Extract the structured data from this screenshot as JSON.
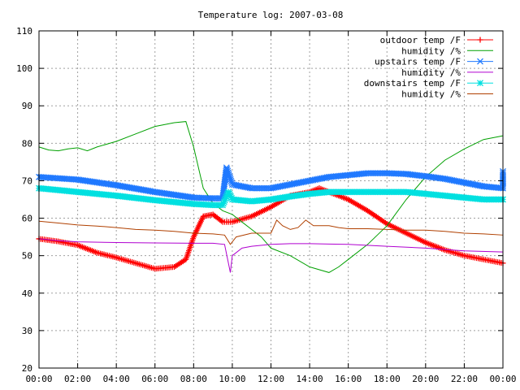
{
  "chart_data": {
    "type": "line",
    "title": "Temperature log: 2007-03-08",
    "xlabel": "",
    "ylabel": "",
    "xlim": [
      0,
      24
    ],
    "ylim": [
      20,
      110
    ],
    "grid": true,
    "legend_position": "top-right",
    "x_tick_labels": [
      "00:00",
      "02:00",
      "04:00",
      "06:00",
      "08:00",
      "10:00",
      "12:00",
      "14:00",
      "16:00",
      "18:00",
      "20:00",
      "22:00",
      "00:00"
    ],
    "y_tick_labels": [
      "20",
      "30",
      "40",
      "50",
      "60",
      "70",
      "80",
      "90",
      "100",
      "110"
    ],
    "series": [
      {
        "name": "outdoor temp /F",
        "color": "#ff0000",
        "marker": "plus",
        "points": [
          [
            0,
            54.5
          ],
          [
            1,
            53.8
          ],
          [
            2,
            52.8
          ],
          [
            3,
            50.8
          ],
          [
            4,
            49.5
          ],
          [
            5,
            48
          ],
          [
            6,
            46.5
          ],
          [
            7,
            47
          ],
          [
            7.6,
            49
          ],
          [
            8,
            55
          ],
          [
            8.5,
            60.5
          ],
          [
            9,
            61
          ],
          [
            9.5,
            59
          ],
          [
            10,
            59
          ],
          [
            11,
            60.5
          ],
          [
            12,
            63
          ],
          [
            13,
            66
          ],
          [
            14,
            67
          ],
          [
            14.5,
            68
          ],
          [
            15,
            67
          ],
          [
            16,
            65
          ],
          [
            17,
            62
          ],
          [
            18,
            58.5
          ],
          [
            19,
            56
          ],
          [
            20,
            53.5
          ],
          [
            21,
            51.5
          ],
          [
            22,
            50
          ],
          [
            23,
            49
          ],
          [
            24,
            48
          ]
        ]
      },
      {
        "name": "humidity /%",
        "color": "#00a000",
        "marker": "line",
        "points": [
          [
            0,
            79
          ],
          [
            0.5,
            78.2
          ],
          [
            1,
            78
          ],
          [
            1.5,
            78.5
          ],
          [
            2,
            78.8
          ],
          [
            2.5,
            78
          ],
          [
            3,
            79
          ],
          [
            4,
            80.5
          ],
          [
            5,
            82.5
          ],
          [
            6,
            84.5
          ],
          [
            7,
            85.5
          ],
          [
            7.6,
            85.8
          ],
          [
            8,
            79
          ],
          [
            8.5,
            68
          ],
          [
            9,
            64
          ],
          [
            9.5,
            62
          ],
          [
            10,
            61
          ],
          [
            10.5,
            59
          ],
          [
            11,
            57
          ],
          [
            11.5,
            55
          ],
          [
            12,
            52
          ],
          [
            13,
            50
          ],
          [
            14,
            47
          ],
          [
            15,
            45.5
          ],
          [
            15.5,
            47
          ],
          [
            16,
            49
          ],
          [
            17,
            53
          ],
          [
            18,
            58
          ],
          [
            19,
            65
          ],
          [
            20,
            71
          ],
          [
            21,
            75.5
          ],
          [
            22,
            78.5
          ],
          [
            23,
            81
          ],
          [
            24,
            82
          ]
        ]
      },
      {
        "name": "upstairs temp /F",
        "color": "#1e78ff",
        "marker": "cross",
        "points": [
          [
            0,
            71
          ],
          [
            2,
            70.3
          ],
          [
            4,
            68.8
          ],
          [
            6,
            67
          ],
          [
            8,
            65.5
          ],
          [
            9,
            65.3
          ],
          [
            9.5,
            65.3
          ],
          [
            9.7,
            73.5
          ],
          [
            10,
            69
          ],
          [
            11,
            68
          ],
          [
            12,
            68
          ],
          [
            13,
            69
          ],
          [
            14,
            70
          ],
          [
            15,
            71
          ],
          [
            16,
            71.5
          ],
          [
            17,
            72
          ],
          [
            18,
            72
          ],
          [
            19,
            71.8
          ],
          [
            20,
            71.2
          ],
          [
            21,
            70.5
          ],
          [
            22,
            69.5
          ],
          [
            23,
            68.5
          ],
          [
            24,
            68
          ],
          [
            24,
            72.5
          ]
        ]
      },
      {
        "name": "humidity /%",
        "color": "#b000d0",
        "marker": "line",
        "points": [
          [
            0,
            54.5
          ],
          [
            1,
            54
          ],
          [
            2,
            53.7
          ],
          [
            4,
            53.5
          ],
          [
            6,
            53.4
          ],
          [
            8,
            53.3
          ],
          [
            9,
            53.3
          ],
          [
            9.6,
            53
          ],
          [
            9.9,
            45.5
          ],
          [
            10,
            50
          ],
          [
            10.5,
            52
          ],
          [
            11,
            52.5
          ],
          [
            12,
            53
          ],
          [
            13,
            53.2
          ],
          [
            14,
            53.2
          ],
          [
            15,
            53.1
          ],
          [
            16,
            53
          ],
          [
            18,
            52.5
          ],
          [
            20,
            52
          ],
          [
            22,
            51.3
          ],
          [
            24,
            51
          ],
          [
            24,
            47.5
          ]
        ]
      },
      {
        "name": "downstairs temp /F",
        "color": "#00e0e0",
        "marker": "star",
        "points": [
          [
            0,
            68
          ],
          [
            2,
            67
          ],
          [
            4,
            66
          ],
          [
            6,
            64.8
          ],
          [
            8,
            63.8
          ],
          [
            9,
            63.5
          ],
          [
            9.5,
            63.5
          ],
          [
            9.8,
            67
          ],
          [
            10,
            65
          ],
          [
            11,
            64.5
          ],
          [
            12,
            65
          ],
          [
            13,
            65.8
          ],
          [
            14,
            66.5
          ],
          [
            15,
            67
          ],
          [
            16,
            67
          ],
          [
            17,
            67
          ],
          [
            18,
            67
          ],
          [
            19,
            67
          ],
          [
            20,
            66.5
          ],
          [
            21,
            66
          ],
          [
            22,
            65.5
          ],
          [
            23,
            65
          ],
          [
            24,
            65
          ]
        ]
      },
      {
        "name": "humidity /%",
        "color": "#b04000",
        "marker": "line",
        "points": [
          [
            0,
            59.2
          ],
          [
            1,
            58.7
          ],
          [
            2,
            58.2
          ],
          [
            3,
            57.9
          ],
          [
            4,
            57.5
          ],
          [
            5,
            57
          ],
          [
            6,
            56.8
          ],
          [
            7,
            56.5
          ],
          [
            8,
            56
          ],
          [
            9,
            55.8
          ],
          [
            9.6,
            55.5
          ],
          [
            9.9,
            53
          ],
          [
            10.2,
            55
          ],
          [
            11,
            56
          ],
          [
            11.8,
            56
          ],
          [
            12,
            56
          ],
          [
            12.3,
            59.5
          ],
          [
            12.6,
            58
          ],
          [
            13,
            57
          ],
          [
            13.4,
            57.5
          ],
          [
            13.8,
            59.5
          ],
          [
            14.2,
            58
          ],
          [
            15,
            58
          ],
          [
            15.5,
            57.5
          ],
          [
            16,
            57.2
          ],
          [
            17,
            57.2
          ],
          [
            18,
            57
          ],
          [
            19,
            56.8
          ],
          [
            20,
            56.8
          ],
          [
            21,
            56.5
          ],
          [
            22,
            56
          ],
          [
            23,
            55.8
          ],
          [
            24,
            55.5
          ],
          [
            24,
            54.8
          ]
        ]
      }
    ]
  }
}
